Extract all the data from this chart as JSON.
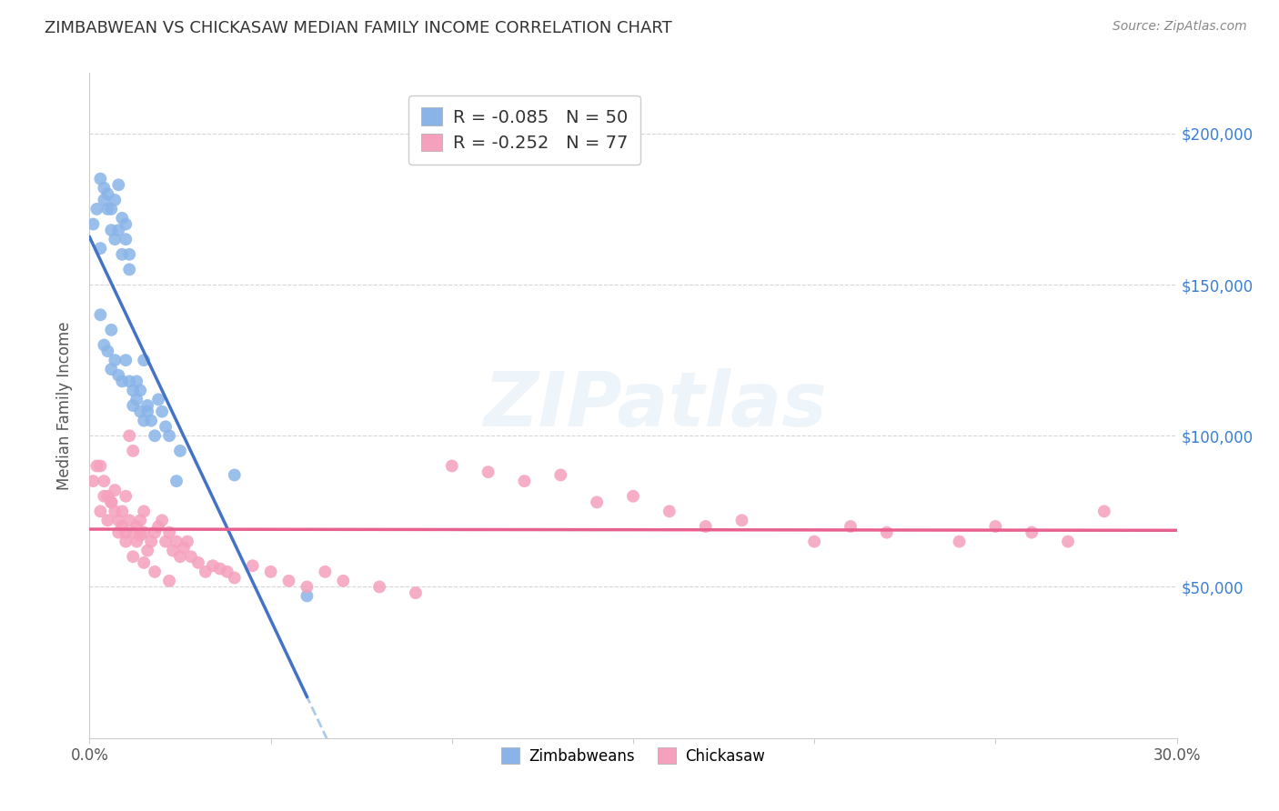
{
  "title": "ZIMBABWEAN VS CHICKASAW MEDIAN FAMILY INCOME CORRELATION CHART",
  "source": "Source: ZipAtlas.com",
  "ylabel": "Median Family Income",
  "yticks": [
    50000,
    100000,
    150000,
    200000
  ],
  "ytick_labels": [
    "$50,000",
    "$100,000",
    "$150,000",
    "$200,000"
  ],
  "xlim": [
    0.0,
    0.3
  ],
  "ylim": [
    0,
    220000
  ],
  "watermark": "ZIPatlas",
  "legend_blue_r": "-0.085",
  "legend_blue_n": "50",
  "legend_pink_r": "-0.252",
  "legend_pink_n": "77",
  "blue_color": "#8ab4e8",
  "pink_color": "#f5a0bc",
  "blue_line_color": "#4472c4",
  "pink_line_color": "#e86090",
  "blue_dash_color": "#aacce8",
  "background_color": "#ffffff",
  "grid_color": "#cccccc",
  "title_color": "#333333",
  "source_color": "#888888",
  "legend_label_blue": "Zimbabweans",
  "legend_label_pink": "Chickasaw",
  "zim_x": [
    0.001,
    0.002,
    0.003,
    0.003,
    0.004,
    0.004,
    0.005,
    0.005,
    0.006,
    0.006,
    0.007,
    0.007,
    0.008,
    0.008,
    0.009,
    0.009,
    0.01,
    0.01,
    0.01,
    0.011,
    0.011,
    0.011,
    0.012,
    0.012,
    0.013,
    0.013,
    0.014,
    0.014,
    0.015,
    0.015,
    0.016,
    0.016,
    0.017,
    0.018,
    0.019,
    0.02,
    0.021,
    0.022,
    0.024,
    0.025,
    0.003,
    0.004,
    0.005,
    0.006,
    0.006,
    0.007,
    0.008,
    0.009,
    0.04,
    0.06
  ],
  "zim_y": [
    170000,
    175000,
    162000,
    185000,
    178000,
    182000,
    175000,
    180000,
    175000,
    168000,
    178000,
    165000,
    183000,
    168000,
    172000,
    160000,
    165000,
    170000,
    125000,
    160000,
    118000,
    155000,
    110000,
    115000,
    112000,
    118000,
    108000,
    115000,
    125000,
    105000,
    110000,
    108000,
    105000,
    100000,
    112000,
    108000,
    103000,
    100000,
    85000,
    95000,
    140000,
    130000,
    128000,
    122000,
    135000,
    125000,
    120000,
    118000,
    87000,
    47000
  ],
  "chick_x": [
    0.001,
    0.002,
    0.003,
    0.004,
    0.005,
    0.006,
    0.007,
    0.008,
    0.009,
    0.01,
    0.01,
    0.011,
    0.011,
    0.012,
    0.012,
    0.013,
    0.013,
    0.014,
    0.014,
    0.015,
    0.015,
    0.016,
    0.017,
    0.018,
    0.019,
    0.02,
    0.021,
    0.022,
    0.023,
    0.024,
    0.025,
    0.026,
    0.027,
    0.028,
    0.03,
    0.032,
    0.034,
    0.036,
    0.038,
    0.04,
    0.045,
    0.05,
    0.055,
    0.06,
    0.065,
    0.07,
    0.08,
    0.09,
    0.1,
    0.11,
    0.12,
    0.13,
    0.14,
    0.15,
    0.16,
    0.17,
    0.18,
    0.2,
    0.21,
    0.22,
    0.24,
    0.25,
    0.26,
    0.27,
    0.28,
    0.003,
    0.004,
    0.005,
    0.006,
    0.007,
    0.008,
    0.009,
    0.01,
    0.012,
    0.015,
    0.018,
    0.022
  ],
  "chick_y": [
    85000,
    90000,
    75000,
    80000,
    72000,
    78000,
    82000,
    68000,
    75000,
    80000,
    65000,
    72000,
    100000,
    68000,
    95000,
    65000,
    70000,
    72000,
    67000,
    68000,
    75000,
    62000,
    65000,
    68000,
    70000,
    72000,
    65000,
    68000,
    62000,
    65000,
    60000,
    63000,
    65000,
    60000,
    58000,
    55000,
    57000,
    56000,
    55000,
    53000,
    57000,
    55000,
    52000,
    50000,
    55000,
    52000,
    50000,
    48000,
    90000,
    88000,
    85000,
    87000,
    78000,
    80000,
    75000,
    70000,
    72000,
    65000,
    70000,
    68000,
    65000,
    70000,
    68000,
    65000,
    75000,
    90000,
    85000,
    80000,
    78000,
    75000,
    72000,
    70000,
    68000,
    60000,
    58000,
    55000,
    52000
  ]
}
